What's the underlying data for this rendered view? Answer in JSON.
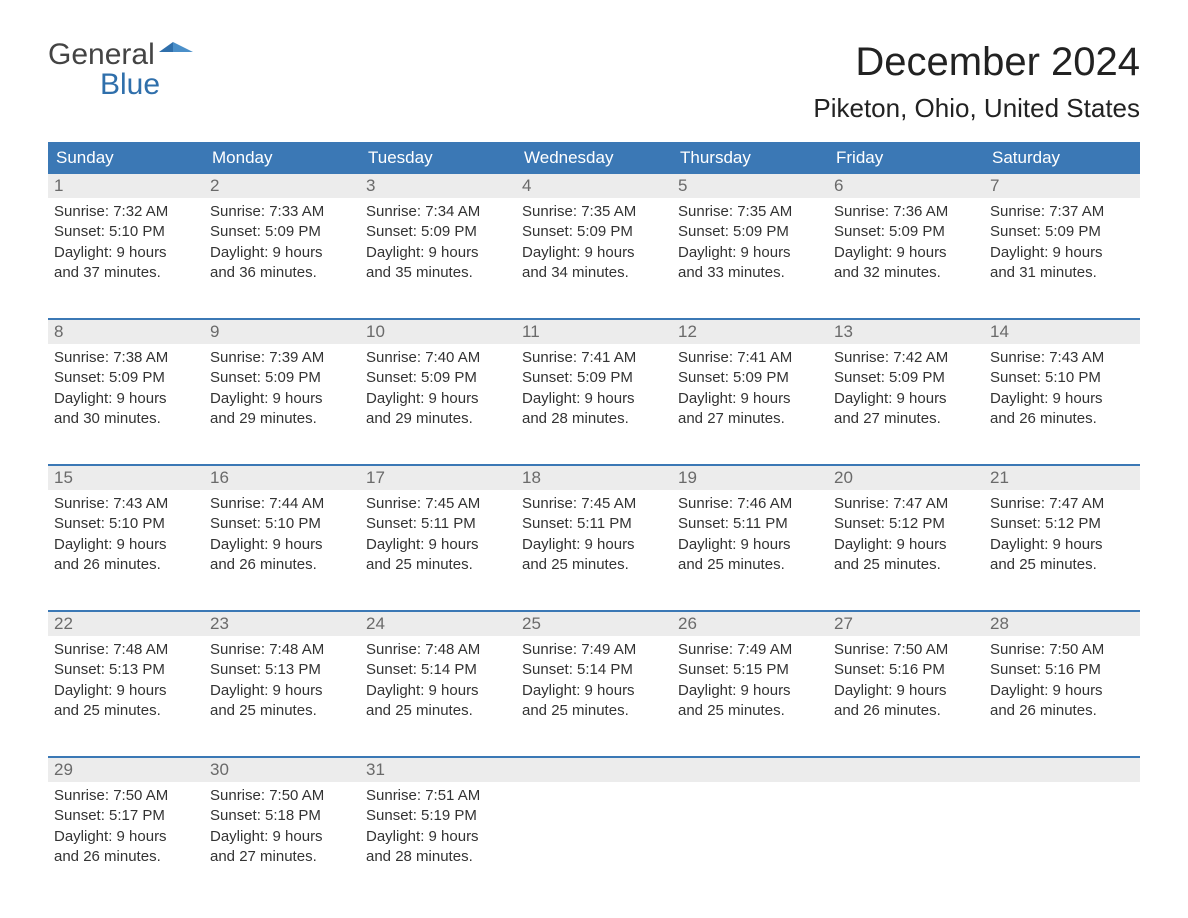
{
  "logo": {
    "general": "General",
    "blue": "Blue"
  },
  "title": "December 2024",
  "location": "Piketon, Ohio, United States",
  "colors": {
    "header_bg": "#3b78b5",
    "header_text": "#ffffff",
    "daynum_bg": "#ececec",
    "daynum_text": "#6a6a6a",
    "body_text": "#333333",
    "rule": "#3b78b5",
    "background": "#ffffff"
  },
  "daysOfWeek": [
    "Sunday",
    "Monday",
    "Tuesday",
    "Wednesday",
    "Thursday",
    "Friday",
    "Saturday"
  ],
  "weeks": [
    [
      {
        "n": "1",
        "sunrise": "Sunrise: 7:32 AM",
        "sunset": "Sunset: 5:10 PM",
        "day1": "Daylight: 9 hours",
        "day2": "and 37 minutes."
      },
      {
        "n": "2",
        "sunrise": "Sunrise: 7:33 AM",
        "sunset": "Sunset: 5:09 PM",
        "day1": "Daylight: 9 hours",
        "day2": "and 36 minutes."
      },
      {
        "n": "3",
        "sunrise": "Sunrise: 7:34 AM",
        "sunset": "Sunset: 5:09 PM",
        "day1": "Daylight: 9 hours",
        "day2": "and 35 minutes."
      },
      {
        "n": "4",
        "sunrise": "Sunrise: 7:35 AM",
        "sunset": "Sunset: 5:09 PM",
        "day1": "Daylight: 9 hours",
        "day2": "and 34 minutes."
      },
      {
        "n": "5",
        "sunrise": "Sunrise: 7:35 AM",
        "sunset": "Sunset: 5:09 PM",
        "day1": "Daylight: 9 hours",
        "day2": "and 33 minutes."
      },
      {
        "n": "6",
        "sunrise": "Sunrise: 7:36 AM",
        "sunset": "Sunset: 5:09 PM",
        "day1": "Daylight: 9 hours",
        "day2": "and 32 minutes."
      },
      {
        "n": "7",
        "sunrise": "Sunrise: 7:37 AM",
        "sunset": "Sunset: 5:09 PM",
        "day1": "Daylight: 9 hours",
        "day2": "and 31 minutes."
      }
    ],
    [
      {
        "n": "8",
        "sunrise": "Sunrise: 7:38 AM",
        "sunset": "Sunset: 5:09 PM",
        "day1": "Daylight: 9 hours",
        "day2": "and 30 minutes."
      },
      {
        "n": "9",
        "sunrise": "Sunrise: 7:39 AM",
        "sunset": "Sunset: 5:09 PM",
        "day1": "Daylight: 9 hours",
        "day2": "and 29 minutes."
      },
      {
        "n": "10",
        "sunrise": "Sunrise: 7:40 AM",
        "sunset": "Sunset: 5:09 PM",
        "day1": "Daylight: 9 hours",
        "day2": "and 29 minutes."
      },
      {
        "n": "11",
        "sunrise": "Sunrise: 7:41 AM",
        "sunset": "Sunset: 5:09 PM",
        "day1": "Daylight: 9 hours",
        "day2": "and 28 minutes."
      },
      {
        "n": "12",
        "sunrise": "Sunrise: 7:41 AM",
        "sunset": "Sunset: 5:09 PM",
        "day1": "Daylight: 9 hours",
        "day2": "and 27 minutes."
      },
      {
        "n": "13",
        "sunrise": "Sunrise: 7:42 AM",
        "sunset": "Sunset: 5:09 PM",
        "day1": "Daylight: 9 hours",
        "day2": "and 27 minutes."
      },
      {
        "n": "14",
        "sunrise": "Sunrise: 7:43 AM",
        "sunset": "Sunset: 5:10 PM",
        "day1": "Daylight: 9 hours",
        "day2": "and 26 minutes."
      }
    ],
    [
      {
        "n": "15",
        "sunrise": "Sunrise: 7:43 AM",
        "sunset": "Sunset: 5:10 PM",
        "day1": "Daylight: 9 hours",
        "day2": "and 26 minutes."
      },
      {
        "n": "16",
        "sunrise": "Sunrise: 7:44 AM",
        "sunset": "Sunset: 5:10 PM",
        "day1": "Daylight: 9 hours",
        "day2": "and 26 minutes."
      },
      {
        "n": "17",
        "sunrise": "Sunrise: 7:45 AM",
        "sunset": "Sunset: 5:11 PM",
        "day1": "Daylight: 9 hours",
        "day2": "and 25 minutes."
      },
      {
        "n": "18",
        "sunrise": "Sunrise: 7:45 AM",
        "sunset": "Sunset: 5:11 PM",
        "day1": "Daylight: 9 hours",
        "day2": "and 25 minutes."
      },
      {
        "n": "19",
        "sunrise": "Sunrise: 7:46 AM",
        "sunset": "Sunset: 5:11 PM",
        "day1": "Daylight: 9 hours",
        "day2": "and 25 minutes."
      },
      {
        "n": "20",
        "sunrise": "Sunrise: 7:47 AM",
        "sunset": "Sunset: 5:12 PM",
        "day1": "Daylight: 9 hours",
        "day2": "and 25 minutes."
      },
      {
        "n": "21",
        "sunrise": "Sunrise: 7:47 AM",
        "sunset": "Sunset: 5:12 PM",
        "day1": "Daylight: 9 hours",
        "day2": "and 25 minutes."
      }
    ],
    [
      {
        "n": "22",
        "sunrise": "Sunrise: 7:48 AM",
        "sunset": "Sunset: 5:13 PM",
        "day1": "Daylight: 9 hours",
        "day2": "and 25 minutes."
      },
      {
        "n": "23",
        "sunrise": "Sunrise: 7:48 AM",
        "sunset": "Sunset: 5:13 PM",
        "day1": "Daylight: 9 hours",
        "day2": "and 25 minutes."
      },
      {
        "n": "24",
        "sunrise": "Sunrise: 7:48 AM",
        "sunset": "Sunset: 5:14 PM",
        "day1": "Daylight: 9 hours",
        "day2": "and 25 minutes."
      },
      {
        "n": "25",
        "sunrise": "Sunrise: 7:49 AM",
        "sunset": "Sunset: 5:14 PM",
        "day1": "Daylight: 9 hours",
        "day2": "and 25 minutes."
      },
      {
        "n": "26",
        "sunrise": "Sunrise: 7:49 AM",
        "sunset": "Sunset: 5:15 PM",
        "day1": "Daylight: 9 hours",
        "day2": "and 25 minutes."
      },
      {
        "n": "27",
        "sunrise": "Sunrise: 7:50 AM",
        "sunset": "Sunset: 5:16 PM",
        "day1": "Daylight: 9 hours",
        "day2": "and 26 minutes."
      },
      {
        "n": "28",
        "sunrise": "Sunrise: 7:50 AM",
        "sunset": "Sunset: 5:16 PM",
        "day1": "Daylight: 9 hours",
        "day2": "and 26 minutes."
      }
    ],
    [
      {
        "n": "29",
        "sunrise": "Sunrise: 7:50 AM",
        "sunset": "Sunset: 5:17 PM",
        "day1": "Daylight: 9 hours",
        "day2": "and 26 minutes."
      },
      {
        "n": "30",
        "sunrise": "Sunrise: 7:50 AM",
        "sunset": "Sunset: 5:18 PM",
        "day1": "Daylight: 9 hours",
        "day2": "and 27 minutes."
      },
      {
        "n": "31",
        "sunrise": "Sunrise: 7:51 AM",
        "sunset": "Sunset: 5:19 PM",
        "day1": "Daylight: 9 hours",
        "day2": "and 28 minutes."
      },
      null,
      null,
      null,
      null
    ]
  ]
}
